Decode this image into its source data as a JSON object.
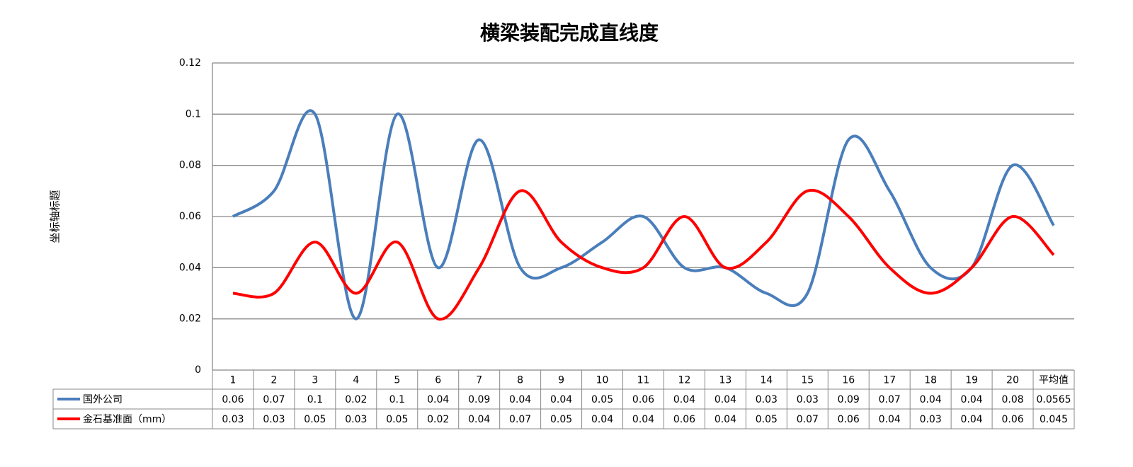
{
  "chart_data": {
    "type": "line",
    "title": "横梁装配完成直线度",
    "y_label": "坐标轴标题",
    "categories": [
      "1",
      "2",
      "3",
      "4",
      "5",
      "6",
      "7",
      "8",
      "9",
      "10",
      "11",
      "12",
      "13",
      "14",
      "15",
      "16",
      "17",
      "18",
      "19",
      "20",
      "平均值"
    ],
    "series": [
      {
        "name": "国外公司",
        "color": "#4a7ebb",
        "values": [
          0.06,
          0.07,
          0.1,
          0.02,
          0.1,
          0.04,
          0.09,
          0.04,
          0.04,
          0.05,
          0.06,
          0.04,
          0.04,
          0.03,
          0.03,
          0.09,
          0.07,
          0.04,
          0.04,
          0.08,
          0.0565
        ]
      },
      {
        "name": "金石基准面（mm）",
        "color": "#ff0000",
        "values": [
          0.03,
          0.03,
          0.05,
          0.03,
          0.05,
          0.02,
          0.04,
          0.07,
          0.05,
          0.04,
          0.04,
          0.06,
          0.04,
          0.05,
          0.07,
          0.06,
          0.04,
          0.03,
          0.04,
          0.06,
          0.045
        ]
      }
    ],
    "ylim": [
      0,
      0.12
    ],
    "yticks": [
      0,
      0.02,
      0.04,
      0.06,
      0.08,
      0.1,
      0.12
    ],
    "grid": true,
    "smooth": true
  }
}
